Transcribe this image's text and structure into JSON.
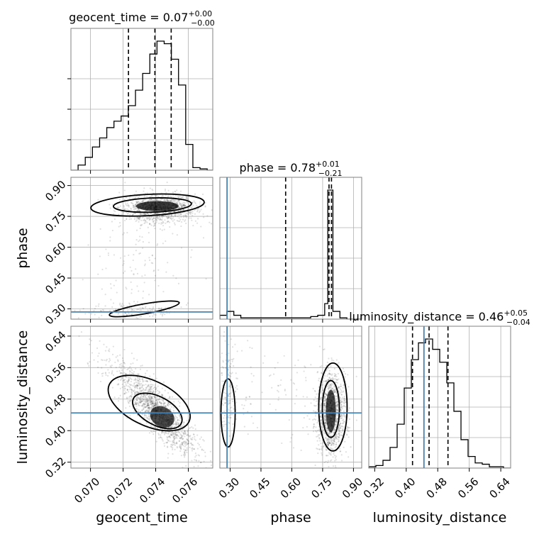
{
  "chart_data": {
    "type": "corner",
    "parameters": [
      "geocent_time",
      "phase",
      "luminosity_distance"
    ],
    "axis_labels": {
      "geocent_time": "geocent_time",
      "phase": "phase",
      "luminosity_distance": "luminosity_distance"
    },
    "ranges": {
      "geocent_time": [
        0.0688,
        0.0775
      ],
      "phase": [
        0.25,
        0.94
      ],
      "luminosity_distance": [
        0.305,
        0.665
      ]
    },
    "ticks": {
      "geocent_time": [
        0.07,
        0.072,
        0.074,
        0.076
      ],
      "phase": [
        0.3,
        0.45,
        0.6,
        0.75,
        0.9
      ],
      "luminosity_distance": [
        0.32,
        0.4,
        0.48,
        0.56,
        0.64
      ]
    },
    "tick_labels": {
      "geocent_time": [
        "0.070",
        "0.072",
        "0.074",
        "0.076"
      ],
      "phase": [
        "0.30",
        "0.45",
        "0.60",
        "0.75",
        "0.90"
      ],
      "luminosity_distance": [
        "0.32",
        "0.40",
        "0.48",
        "0.56",
        "0.64"
      ]
    },
    "titles": {
      "geocent_time": {
        "label": "geocent_time = 0.07",
        "plus": "+0.00",
        "minus": "−0.00"
      },
      "phase": {
        "label": "phase = 0.78",
        "plus": "+0.01",
        "minus": "−0.21"
      },
      "luminosity_distance": {
        "label": "luminosity_distance = 0.46",
        "plus": "+0.05",
        "minus": "−0.04"
      }
    },
    "quantiles": {
      "geocent_time": [
        0.07233,
        0.07395,
        0.07495
      ],
      "phase": [
        0.57,
        0.781,
        0.793
      ],
      "luminosity_distance": [
        0.416,
        0.458,
        0.506
      ]
    },
    "truths": {
      "phase": 0.285,
      "luminosity_distance": 0.445
    },
    "histograms": {
      "geocent_time": {
        "edges": [
          0.0688,
          0.06924,
          0.06968,
          0.07012,
          0.07056,
          0.071,
          0.07144,
          0.07188,
          0.07232,
          0.07276,
          0.0732,
          0.07364,
          0.07408,
          0.07452,
          0.07496,
          0.0754,
          0.07584,
          0.07628,
          0.07672,
          0.07716,
          0.0775
        ],
        "values": [
          0,
          4,
          10,
          18,
          25,
          33,
          38,
          42,
          50,
          62,
          75,
          90,
          100,
          98,
          86,
          66,
          20,
          2,
          1,
          0
        ]
      },
      "phase": {
        "edges": [
          0.25,
          0.284,
          0.318,
          0.352,
          0.386,
          0.42,
          0.454,
          0.488,
          0.522,
          0.556,
          0.59,
          0.624,
          0.658,
          0.692,
          0.726,
          0.76,
          0.775,
          0.8,
          0.834,
          0.868,
          0.902,
          0.94
        ],
        "values": [
          3,
          6,
          3,
          1,
          1,
          1,
          1,
          1,
          1,
          1,
          1,
          1,
          1,
          2,
          3,
          12,
          100,
          6,
          1,
          0,
          0
        ]
      },
      "luminosity_distance": {
        "edges": [
          0.305,
          0.323,
          0.341,
          0.359,
          0.377,
          0.395,
          0.413,
          0.431,
          0.449,
          0.467,
          0.485,
          0.503,
          0.521,
          0.539,
          0.557,
          0.575,
          0.593,
          0.611,
          0.629,
          0.647,
          0.665
        ],
        "values": [
          1,
          2,
          6,
          16,
          34,
          62,
          84,
          97,
          100,
          92,
          82,
          66,
          44,
          22,
          9,
          4,
          3,
          1,
          1,
          0
        ]
      }
    },
    "grid": true
  }
}
